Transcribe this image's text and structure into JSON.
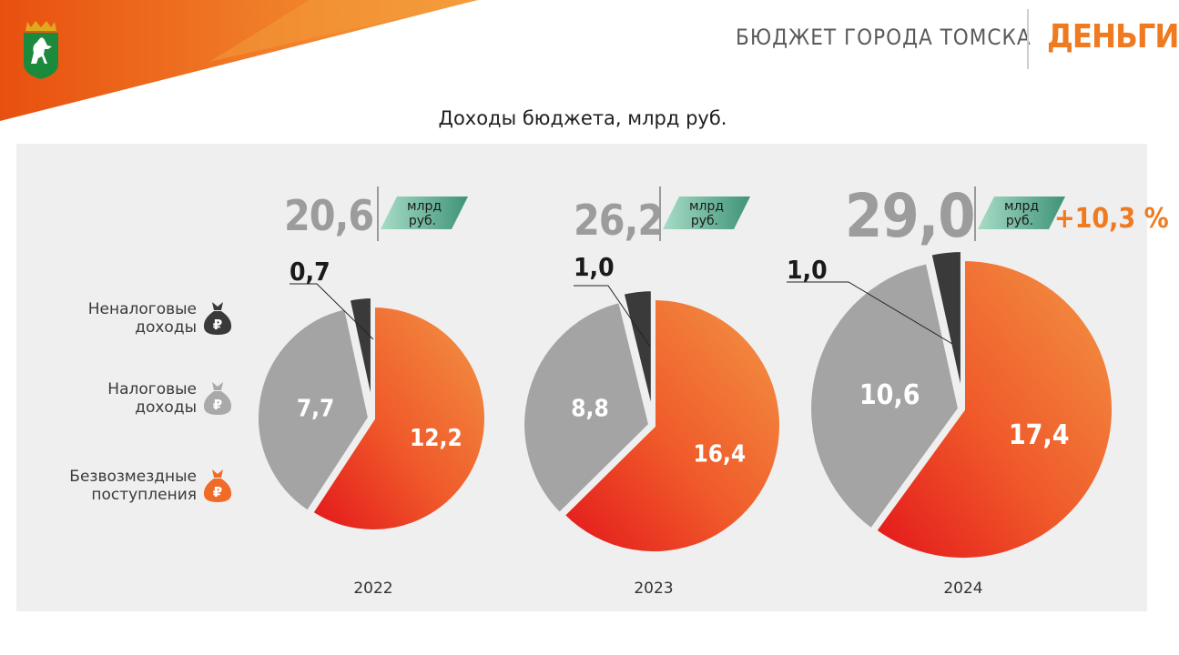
{
  "header": {
    "title": "БЮДЖЕТ ГОРОДА ТОМСКА",
    "brand": "ДЕНЬГИ"
  },
  "page_title": "Доходы бюджета, млрд руб.",
  "colors": {
    "accent_orange": "#ef7a1f",
    "non_tax": "#3a3a3a",
    "tax": "#a4a4a4",
    "grants": "#f06a28",
    "unit_badge": "#4a9e82",
    "coat_of_arms": "#1c8a3c"
  },
  "legend": [
    {
      "line1": "Неналоговые",
      "line2": "доходы",
      "icon": "money-bag-icon",
      "color": "#3a3a3a"
    },
    {
      "line1": "Налоговые",
      "line2": "доходы",
      "icon": "money-bag-icon",
      "color": "#a9a9a9"
    },
    {
      "line1": "Безвозмездные",
      "line2": "поступления",
      "icon": "money-bag-icon",
      "color": "#f06a28"
    }
  ],
  "chart_data": [
    {
      "type": "pie",
      "category": "2022",
      "total": "20,6",
      "unit_line1": "млрд",
      "unit_line2": "руб.",
      "slices": [
        {
          "name": "Безвозмездные поступления",
          "value": 12.2,
          "label": "12,2"
        },
        {
          "name": "Налоговые доходы",
          "value": 7.7,
          "label": "7,7"
        },
        {
          "name": "Неналоговые доходы",
          "value": 0.7,
          "label": "0,7"
        }
      ]
    },
    {
      "type": "pie",
      "category": "2023",
      "total": "26,2",
      "unit_line1": "млрд",
      "unit_line2": "руб.",
      "slices": [
        {
          "name": "Безвозмездные поступления",
          "value": 16.4,
          "label": "16,4"
        },
        {
          "name": "Налоговые доходы",
          "value": 8.8,
          "label": "8,8"
        },
        {
          "name": "Неналоговые доходы",
          "value": 1.0,
          "label": "1,0"
        }
      ]
    },
    {
      "type": "pie",
      "category": "2024",
      "total": "29,0",
      "unit_line1": "млрд",
      "unit_line2": "руб.",
      "change": "+10,3 %",
      "slices": [
        {
          "name": "Безвозмездные поступления",
          "value": 17.4,
          "label": "17,4"
        },
        {
          "name": "Налоговые доходы",
          "value": 10.6,
          "label": "10,6"
        },
        {
          "name": "Неналоговые доходы",
          "value": 1.0,
          "label": "1,0"
        }
      ]
    }
  ]
}
